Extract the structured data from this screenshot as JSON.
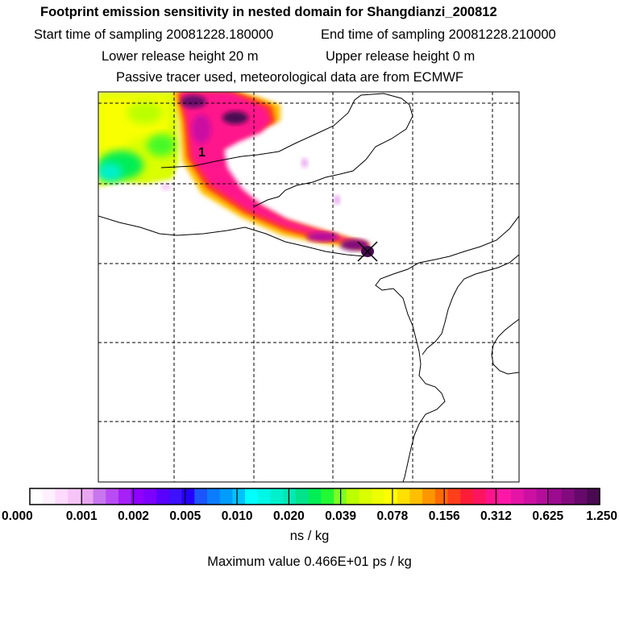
{
  "header": {
    "title": "Footprint emission sensitivity in nested domain for Shangdianzi_200812",
    "start_label": "Start time of sampling 20081228.180000",
    "end_label": "End time of sampling 20081228.210000",
    "lower_label": "Lower release height   20 m",
    "upper_label": "Upper release height    0 m",
    "tracer_note": "Passive tracer used, meteorological data are from ECMWF"
  },
  "map": {
    "release_marker_label": "1",
    "colors": {
      "frame": "#000000",
      "coast": "#000000",
      "grid": "#000000"
    }
  },
  "colorbar": {
    "tick_labels": [
      "0.000",
      "0.001",
      "0.002",
      "0.005",
      "0.010",
      "0.020",
      "0.039",
      "0.078",
      "0.156",
      "0.312",
      "0.625",
      "1.250"
    ],
    "colors": [
      "#ffffff",
      "#fff0ff",
      "#ffdaff",
      "#f7c4f7",
      "#e9a6f0",
      "#c776ee",
      "#b94bf5",
      "#a620f8",
      "#9000ff",
      "#7d00ff",
      "#5900ff",
      "#3d10ff",
      "#2500ff",
      "#1a55ff",
      "#0b7cff",
      "#009cff",
      "#00c2ff",
      "#00ffff",
      "#00f7e6",
      "#00f0cc",
      "#00e8b3",
      "#00e38a",
      "#00ee55",
      "#22f933",
      "#7dff20",
      "#bbff00",
      "#d9ff00",
      "#eeff00",
      "#ffff00",
      "#ffe000",
      "#ffbf00",
      "#ff9600",
      "#ff6b00",
      "#ff3f1a",
      "#ff1c38",
      "#ff1460",
      "#ff138c",
      "#ff18a8",
      "#e414a6",
      "#cc10a2",
      "#b50c9c",
      "#9c0a8f",
      "#820a7d",
      "#66096a",
      "#4a0a52"
    ],
    "unit": "ns / kg",
    "max_value_text": "Maximum value  0.466E+01 ps / kg"
  }
}
